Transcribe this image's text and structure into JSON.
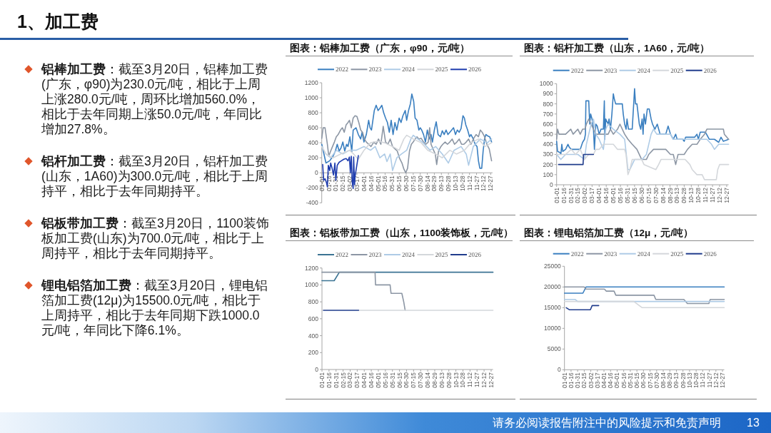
{
  "chart_data": [
    {
      "type": "other",
      "title": "1、加工费",
      "annotations": [
        "铝棒加工费：截至3月20日，铝棒加工费(广东，φ90)为230.0元/吨，相比于上周上涨280.0元/吨，周环比增加560.0%，相比于去年同期上涨50.0元/吨，年同比增加27.8%。",
        "铝杆加工费：截至3月20日，铝杆加工费(山东，1A60)为300.0元/吨，相比于上周持平，相比于去年同期持平。",
        "铝板带加工费：截至3月20日，1100装饰板加工费(山东)为700.0元/吨，相比于上周持平，相比于去年同期持平。",
        "锂电铝箔加工费：截至3月20日，锂电铝箔加工费(12μ)为15500.0元/吨，相比于上周持平，相比于去年同期下跌1000.0元/吨，年同比下降6.1%。",
        "请务必阅读报告附注中的风险提示和免责声明",
        "13"
      ]
    },
    {
      "type": "line",
      "title": "图表：铝棒加工费（广东，φ90，元/吨）",
      "legend": "top",
      "xlim": [
        "--01-01",
        "--12-31"
      ],
      "ylim": [
        -400,
        1200
      ],
      "yticks": [
        -400,
        -200,
        0,
        200,
        400,
        600,
        800,
        1000,
        1200
      ],
      "xticks": [
        {
          "value": "--01-01",
          "label": "01-01"
        },
        {
          "value": "--01-16",
          "label": "01-16"
        },
        {
          "value": "--01-31",
          "label": "01-31"
        },
        {
          "value": "--02-15",
          "label": "02-15"
        },
        {
          "value": "--03-02",
          "label": "03-02"
        },
        {
          "value": "--03-17",
          "label": "03-17"
        },
        {
          "value": "--04-01",
          "label": "04-01"
        },
        {
          "value": "--04-16",
          "label": "04-16"
        },
        {
          "value": "--05-01",
          "label": "05-01"
        },
        {
          "value": "--05-16",
          "label": "05-16"
        },
        {
          "value": "--05-31",
          "label": "05-31"
        },
        {
          "value": "--06-15",
          "label": "06-15"
        },
        {
          "value": "--06-30",
          "label": "06-30"
        },
        {
          "value": "--07-15",
          "label": "07-15"
        },
        {
          "value": "--07-30",
          "label": "07-30"
        },
        {
          "value": "--08-14",
          "label": "08-14"
        },
        {
          "value": "--08-29",
          "label": "08-29"
        },
        {
          "value": "--09-13",
          "label": "09-13"
        },
        {
          "value": "--09-28",
          "label": "09-28"
        },
        {
          "value": "--10-13",
          "label": "10-13"
        },
        {
          "value": "--10-28",
          "label": "10-28"
        },
        {
          "value": "--11-12",
          "label": "11-12"
        },
        {
          "value": "--11-27",
          "label": "11-27"
        },
        {
          "value": "--12-12",
          "label": "12-12"
        },
        {
          "value": "--12-27",
          "label": "12-27"
        }
      ],
      "series": [
        {
          "name": "2022",
          "color": "#3a7fc0",
          "x": [
            "--01-01",
            "--01-10",
            "--01-18",
            "--01-25",
            "--01-30",
            "--02-03",
            "--02-07",
            "--02-11",
            "--02-15",
            "--02-19",
            "--02-23",
            "--02-26",
            "--03-02",
            "--03-06",
            "--03-09",
            "--03-15",
            "--03-20",
            "--03-25",
            "--03-28",
            "--04-01",
            "--04-06",
            "--04-11",
            "--04-14",
            "--04-17",
            "--04-23",
            "--04-27",
            "--05-01",
            "--05-05",
            "--05-09",
            "--05-13",
            "--05-17",
            "--05-21",
            "--05-25",
            "--05-29",
            "--06-02",
            "--06-06",
            "--06-10",
            "--06-15",
            "--06-19",
            "--06-23",
            "--06-28",
            "--07-01",
            "--07-05",
            "--07-09",
            "--07-12",
            "--07-16",
            "--07-19",
            "--07-23",
            "--07-27",
            "--07-30",
            "--08-02",
            "--08-06",
            "--08-10",
            "--08-14",
            "--08-18",
            "--08-22",
            "--08-25",
            "--08-29",
            "--09-02",
            "--09-06",
            "--09-11",
            "--09-15",
            "--09-19",
            "--09-23",
            "--09-27",
            "--10-01",
            "--10-05",
            "--10-09",
            "--10-13",
            "--10-17",
            "--10-21",
            "--10-25",
            "--10-29",
            "--11-01",
            "--11-04",
            "--11-08",
            "--11-12",
            "--11-15",
            "--11-20",
            "--11-24",
            "--11-28",
            "--12-01",
            "--12-04",
            "--12-08",
            "--12-11",
            "--12-14",
            "--12-17",
            "--12-21",
            "--12-25",
            "--12-29"
          ],
          "values": [
            380,
            130,
            160,
            220,
            290,
            380,
            290,
            330,
            410,
            290,
            380,
            350,
            480,
            280,
            570,
            600,
            510,
            450,
            540,
            410,
            510,
            700,
            600,
            570,
            830,
            900,
            830,
            860,
            900,
            800,
            730,
            670,
            540,
            700,
            510,
            670,
            570,
            730,
            670,
            760,
            830,
            700,
            830,
            920,
            1050,
            950,
            730,
            700,
            570,
            600,
            570,
            510,
            410,
            570,
            450,
            510,
            410,
            570,
            680,
            510,
            480,
            560,
            510,
            570,
            510,
            540,
            570,
            600,
            510,
            570,
            540,
            590,
            760,
            730,
            640,
            570,
            480,
            510,
            450,
            380,
            350,
            160,
            60,
            60,
            290,
            450,
            510,
            490,
            480,
            410
          ]
        },
        {
          "name": "2023",
          "color": "#8c96a4",
          "x": [
            "--01-01",
            "--01-04",
            "--01-08",
            "--01-13",
            "--01-16",
            "--01-20",
            "--01-24",
            "--01-28",
            "--02-01",
            "--02-05",
            "--02-10",
            "--02-14",
            "--02-18",
            "--02-22",
            "--02-26",
            "--03-01",
            "--03-05",
            "--03-09",
            "--03-13",
            "--03-17",
            "--03-21",
            "--03-25",
            "--03-29",
            "--04-02",
            "--04-06",
            "--04-11",
            "--04-16",
            "--04-22",
            "--04-27",
            "--05-02",
            "--05-07",
            "--05-12",
            "--05-17",
            "--05-22",
            "--05-27",
            "--06-01",
            "--06-06",
            "--06-11",
            "--06-16",
            "--06-21",
            "--06-25",
            "--06-29",
            "--07-03",
            "--07-07",
            "--07-11",
            "--07-15",
            "--07-19",
            "--07-23",
            "--07-27",
            "--08-01",
            "--08-06",
            "--08-11",
            "--08-16",
            "--08-19",
            "--08-22",
            "--08-26",
            "--08-31",
            "--09-03",
            "--09-07",
            "--09-12",
            "--09-16",
            "--09-21",
            "--09-26",
            "--10-01",
            "--10-06",
            "--10-11",
            "--10-16",
            "--10-21",
            "--10-26",
            "--10-31",
            "--11-05",
            "--11-10",
            "--11-15",
            "--11-21",
            "--11-26",
            "--12-01",
            "--12-05",
            "--12-09",
            "--12-14",
            "--12-19",
            "--12-24",
            "--12-29"
          ],
          "values": [
            460,
            600,
            600,
            380,
            220,
            290,
            350,
            410,
            480,
            510,
            570,
            600,
            540,
            640,
            670,
            700,
            600,
            730,
            760,
            750,
            670,
            570,
            540,
            450,
            410,
            380,
            350,
            410,
            380,
            450,
            380,
            620,
            410,
            380,
            450,
            350,
            320,
            290,
            190,
            130,
            50,
            0,
            60,
            290,
            380,
            410,
            450,
            480,
            450,
            460,
            410,
            380,
            410,
            600,
            380,
            320,
            250,
            110,
            290,
            350,
            380,
            410,
            380,
            410,
            450,
            380,
            410,
            450,
            380,
            380,
            410,
            450,
            380,
            460,
            510,
            480,
            570,
            540,
            480,
            380,
            320,
            160
          ]
        },
        {
          "name": "2024",
          "color": "#aecbe6",
          "x": [
            "--01-01",
            "--01-10",
            "--01-20",
            "--02-01",
            "--02-15",
            "--03-01",
            "--03-15",
            "--04-01",
            "--04-15",
            "--04-25",
            "--05-05",
            "--05-15",
            "--05-20",
            "--05-27",
            "--06-01",
            "--06-10",
            "--06-20",
            "--07-01",
            "--07-10",
            "--07-15",
            "--07-25",
            "--08-05",
            "--08-20",
            "--09-01",
            "--09-15",
            "--09-28",
            "--10-10",
            "--10-25",
            "--11-05",
            "--11-10",
            "--11-20",
            "--12-05",
            "--12-20",
            "--12-29"
          ],
          "values": [
            350,
            250,
            200,
            300,
            250,
            300,
            300,
            350,
            300,
            350,
            200,
            250,
            150,
            250,
            30,
            200,
            250,
            300,
            450,
            500,
            450,
            400,
            300,
            350,
            250,
            130,
            300,
            350,
            250,
            100,
            350,
            450,
            400,
            450
          ]
        },
        {
          "name": "2025",
          "color": "#d4d7db",
          "x": [
            "--01-01",
            "--01-10",
            "--01-25",
            "--02-10",
            "--03-01",
            "--03-10",
            "--03-20",
            "--04-01",
            "--04-15",
            "--05-01",
            "--05-15",
            "--06-01",
            "--06-15",
            "--06-25",
            "--07-01",
            "--07-15",
            "--08-01",
            "--08-15",
            "--09-01",
            "--09-15",
            "--10-01",
            "--10-15",
            "--11-01",
            "--11-15",
            "--12-01",
            "--12-15",
            "--12-29"
          ],
          "values": [
            350,
            250,
            200,
            250,
            300,
            250,
            180,
            300,
            400,
            420,
            400,
            350,
            300,
            450,
            500,
            450,
            400,
            300,
            250,
            200,
            300,
            250,
            300,
            400,
            450,
            350,
            400
          ]
        },
        {
          "name": "2026",
          "color": "#1e3cae",
          "x": [
            "--01-03",
            "--01-05",
            "--01-08",
            "--01-11",
            "--01-13",
            "--01-15",
            "--01-18",
            "--01-20",
            "--01-23",
            "--01-26",
            "--01-29",
            "--01-31",
            "--02-03",
            "--02-07",
            "--02-12",
            "--02-17",
            "--02-22",
            "--02-26",
            "--03-01",
            "--03-03",
            "--03-05",
            "--03-07",
            "--03-09",
            "--03-10",
            "--03-12",
            "--03-13",
            "--03-20"
          ],
          "values": [
            110,
            -100,
            -80,
            -130,
            -190,
            100,
            30,
            130,
            60,
            -30,
            130,
            -100,
            100,
            140,
            160,
            180,
            190,
            160,
            210,
            0,
            220,
            -130,
            -210,
            210,
            -160,
            -50,
            230
          ]
        }
      ]
    },
    {
      "type": "line",
      "title": "图表：铝杆加工费（山东，1A60，元/吨）",
      "legend": "top",
      "xlim": [
        "--01-01",
        "--12-31"
      ],
      "ylim": [
        0,
        1000
      ],
      "yticks": [
        0,
        100,
        200,
        300,
        400,
        500,
        600,
        700,
        800,
        900,
        1000
      ],
      "xticks": [
        {
          "value": "--01-01",
          "label": "01-01"
        },
        {
          "value": "--01-16",
          "label": "01-16"
        },
        {
          "value": "--01-31",
          "label": "01-31"
        },
        {
          "value": "--02-15",
          "label": "02-15"
        },
        {
          "value": "--03-02",
          "label": "03-02"
        },
        {
          "value": "--03-17",
          "label": "03-17"
        },
        {
          "value": "--04-01",
          "label": "04-01"
        },
        {
          "value": "--04-16",
          "label": "04-16"
        },
        {
          "value": "--05-01",
          "label": "05-01"
        },
        {
          "value": "--05-16",
          "label": "05-16"
        },
        {
          "value": "--05-31",
          "label": "05-31"
        },
        {
          "value": "--06-15",
          "label": "06-15"
        },
        {
          "value": "--06-30",
          "label": "06-30"
        },
        {
          "value": "--07-15",
          "label": "07-15"
        },
        {
          "value": "--07-30",
          "label": "07-30"
        },
        {
          "value": "--08-14",
          "label": "08-14"
        },
        {
          "value": "--08-29",
          "label": "08-29"
        },
        {
          "value": "--09-13",
          "label": "09-13"
        },
        {
          "value": "--09-28",
          "label": "09-28"
        },
        {
          "value": "--10-13",
          "label": "10-13"
        },
        {
          "value": "--10-28",
          "label": "10-28"
        },
        {
          "value": "--11-12",
          "label": "11-12"
        },
        {
          "value": "--11-27",
          "label": "11-27"
        },
        {
          "value": "--12-12",
          "label": "12-12"
        },
        {
          "value": "--12-27",
          "label": "12-27"
        }
      ],
      "series": [
        {
          "name": "2022",
          "color": "#3a7fc0",
          "x": [
            "--01-01",
            "--01-03",
            "--01-08",
            "--01-10",
            "--01-12",
            "--01-14",
            "--01-20",
            "--01-25",
            "--01-28",
            "--02-01",
            "--02-20",
            "--02-25",
            "--03-01",
            "--03-03",
            "--03-04",
            "--03-10",
            "--03-12",
            "--03-14",
            "--03-17",
            "--03-20",
            "--03-22",
            "--03-25",
            "--03-28",
            "--04-01",
            "--04-05",
            "--04-10",
            "--04-12",
            "--04-13",
            "--04-15",
            "--04-20",
            "--04-22",
            "--04-25",
            "--04-28",
            "--05-01",
            "--05-03",
            "--05-06",
            "--05-20",
            "--05-22",
            "--05-25",
            "--05-28",
            "--05-30",
            "--06-02",
            "--06-10",
            "--06-15",
            "--06-17",
            "--06-20",
            "--06-25",
            "--06-28",
            "--07-01",
            "--07-03",
            "--07-05",
            "--07-08",
            "--07-12",
            "--07-16",
            "--07-20",
            "--07-23",
            "--07-28",
            "--08-02",
            "--08-05",
            "--08-08",
            "--08-20",
            "--08-25",
            "--08-30",
            "--09-05",
            "--09-10",
            "--09-13",
            "--09-25",
            "--09-28",
            "--10-01",
            "--10-20",
            "--10-25",
            "--10-28",
            "--11-01",
            "--11-12",
            "--11-20",
            "--12-01",
            "--12-10",
            "--12-15",
            "--12-20",
            "--12-31"
          ],
          "values": [
            430,
            330,
            320,
            300,
            400,
            330,
            350,
            400,
            370,
            350,
            350,
            420,
            450,
            500,
            830,
            830,
            600,
            700,
            650,
            550,
            350,
            600,
            580,
            500,
            550,
            550,
            830,
            450,
            650,
            600,
            650,
            550,
            700,
            900,
            850,
            800,
            800,
            700,
            600,
            550,
            650,
            550,
            550,
            950,
            800,
            800,
            600,
            550,
            650,
            500,
            700,
            600,
            750,
            750,
            650,
            600,
            550,
            600,
            550,
            500,
            500,
            580,
            500,
            450,
            500,
            450,
            450,
            430,
            470,
            470,
            500,
            450,
            520,
            520,
            450,
            450,
            420,
            470,
            430,
            450
          ]
        },
        {
          "name": "2023",
          "color": "#8c96a4",
          "x": [
            "--01-01",
            "--01-03",
            "--01-06",
            "--01-20",
            "--01-31",
            "--02-05",
            "--02-15",
            "--02-20",
            "--02-25",
            "--03-02",
            "--03-05",
            "--03-10",
            "--03-20",
            "--03-25",
            "--04-20",
            "--04-25",
            "--05-01",
            "--05-10",
            "--05-15",
            "--05-25",
            "--06-01",
            "--06-10",
            "--06-20",
            "--06-30",
            "--07-10",
            "--07-15",
            "--07-25",
            "--08-20",
            "--08-30",
            "--09-05",
            "--09-10",
            "--09-15",
            "--09-28",
            "--10-05",
            "--10-15",
            "--10-25",
            "--11-01",
            "--11-10",
            "--11-15",
            "--12-20",
            "--12-22",
            "--12-31"
          ],
          "values": [
            450,
            550,
            500,
            500,
            550,
            500,
            550,
            500,
            550,
            550,
            600,
            650,
            550,
            500,
            500,
            550,
            500,
            550,
            600,
            500,
            450,
            400,
            350,
            250,
            250,
            300,
            350,
            350,
            300,
            300,
            200,
            300,
            300,
            350,
            400,
            400,
            450,
            500,
            550,
            550,
            500,
            450
          ]
        },
        {
          "name": "2024",
          "color": "#aecbe6",
          "x": [
            "--01-01",
            "--01-10",
            "--01-20",
            "--02-15",
            "--03-01",
            "--03-05",
            "--03-10",
            "--03-15",
            "--03-20",
            "--03-25",
            "--04-01",
            "--04-10",
            "--04-15",
            "--04-20",
            "--05-01",
            "--05-15",
            "--05-25",
            "--06-01",
            "--06-05",
            "--06-15",
            "--07-01",
            "--07-10",
            "--07-15",
            "--07-20",
            "--07-25",
            "--08-01",
            "--08-30",
            "--09-05",
            "--09-25",
            "--10-20",
            "--11-05",
            "--11-15",
            "--11-25",
            "--12-01",
            "--12-10",
            "--12-31"
          ],
          "values": [
            300,
            250,
            300,
            300,
            250,
            400,
            500,
            600,
            650,
            500,
            450,
            350,
            550,
            600,
            550,
            500,
            450,
            150,
            150,
            250,
            250,
            300,
            400,
            500,
            550,
            500,
            500,
            450,
            450,
            450,
            450,
            450,
            400,
            350,
            400,
            400
          ]
        },
        {
          "name": "2025",
          "color": "#d4d7db",
          "x": [
            "--01-01",
            "--01-20",
            "--02-01",
            "--02-10",
            "--02-20",
            "--03-01",
            "--03-10",
            "--03-20",
            "--03-25",
            "--04-01",
            "--04-10",
            "--05-01",
            "--05-10",
            "--05-25",
            "--05-28",
            "--06-01",
            "--06-05",
            "--06-10",
            "--06-30",
            "--07-05",
            "--07-30",
            "--08-05",
            "--08-10",
            "--09-30",
            "--10-10",
            "--10-15",
            "--10-25",
            "--11-05",
            "--11-10",
            "--12-05",
            "--12-08",
            "--12-12",
            "--12-31"
          ],
          "values": [
            300,
            300,
            350,
            300,
            350,
            250,
            300,
            300,
            350,
            350,
            400,
            400,
            350,
            350,
            300,
            100,
            150,
            250,
            250,
            200,
            150,
            200,
            250,
            250,
            200,
            150,
            100,
            100,
            50,
            50,
            150,
            200,
            200
          ]
        },
        {
          "name": "2026",
          "color": "#203c8c",
          "x": [
            "--01-05",
            "--02-26",
            "--02-27",
            "--03-20"
          ],
          "values": [
            200,
            200,
            300,
            300
          ]
        }
      ]
    },
    {
      "type": "line",
      "title": "图表：铝板带加工费（山东，1100装饰板，元/吨）",
      "legend": "top",
      "xlim": [
        "--01-01",
        "--12-31"
      ],
      "ylim": [
        0,
        1200
      ],
      "yticks": [
        0,
        200,
        400,
        600,
        800,
        1000,
        1200
      ],
      "xticks": [
        {
          "value": "--01-01",
          "label": "01-01"
        },
        {
          "value": "--01-16",
          "label": "01-16"
        },
        {
          "value": "--01-31",
          "label": "01-31"
        },
        {
          "value": "--02-15",
          "label": "02-15"
        },
        {
          "value": "--03-02",
          "label": "03-02"
        },
        {
          "value": "--03-17",
          "label": "03-17"
        },
        {
          "value": "--04-01",
          "label": "04-01"
        },
        {
          "value": "--04-16",
          "label": "04-16"
        },
        {
          "value": "--05-01",
          "label": "05-01"
        },
        {
          "value": "--05-16",
          "label": "05-16"
        },
        {
          "value": "--05-31",
          "label": "05-31"
        },
        {
          "value": "--06-15",
          "label": "06-15"
        },
        {
          "value": "--06-30",
          "label": "06-30"
        },
        {
          "value": "--07-15",
          "label": "07-15"
        },
        {
          "value": "--07-30",
          "label": "07-30"
        },
        {
          "value": "--08-14",
          "label": "08-14"
        },
        {
          "value": "--08-29",
          "label": "08-29"
        },
        {
          "value": "--09-13",
          "label": "09-13"
        },
        {
          "value": "--09-28",
          "label": "09-28"
        },
        {
          "value": "--10-13",
          "label": "10-13"
        },
        {
          "value": "--10-28",
          "label": "10-28"
        },
        {
          "value": "--11-12",
          "label": "11-12"
        },
        {
          "value": "--11-27",
          "label": "11-27"
        },
        {
          "value": "--12-12",
          "label": "12-12"
        },
        {
          "value": "--12-27",
          "label": "12-27"
        }
      ],
      "series": [
        {
          "name": "2022",
          "color": "#3b7393",
          "x": [
            "--01-01",
            "--01-27",
            "--02-07",
            "--12-31"
          ],
          "values": [
            1050,
            1050,
            1150,
            1150
          ]
        },
        {
          "name": "2023",
          "color": "#8c96a4",
          "x": [
            "--01-01",
            "--04-24",
            "--04-25",
            "--05-26",
            "--05-28",
            "--06-20",
            "--06-24",
            "--06-27"
          ],
          "values": [
            1150,
            1150,
            1000,
            1000,
            900,
            900,
            800,
            700
          ]
        },
        {
          "name": "2024",
          "color": "#aecbe6"
        },
        {
          "name": "2025",
          "color": "#d4d7db",
          "x": [
            "--03-20",
            "--12-31"
          ],
          "values": [
            700,
            700
          ]
        },
        {
          "name": "2026",
          "color": "#203c8c",
          "x": [
            "--01-04",
            "--03-20"
          ],
          "values": [
            700,
            700
          ]
        }
      ]
    },
    {
      "type": "line",
      "title": "图表：锂电铝箔加工费（12μ，元/吨）",
      "legend": "top",
      "xlim": [
        "--01-01",
        "--12-31"
      ],
      "ylim": [
        0,
        25000
      ],
      "yticks": [
        0,
        5000,
        10000,
        15000,
        20000,
        25000
      ],
      "xticks": [
        {
          "value": "--01-01",
          "label": "01-01"
        },
        {
          "value": "--01-16",
          "label": "01-16"
        },
        {
          "value": "--01-31",
          "label": "01-31"
        },
        {
          "value": "--02-15",
          "label": "02-15"
        },
        {
          "value": "--03-02",
          "label": "03-02"
        },
        {
          "value": "--03-17",
          "label": "03-17"
        },
        {
          "value": "--04-01",
          "label": "04-01"
        },
        {
          "value": "--04-16",
          "label": "04-16"
        },
        {
          "value": "--05-01",
          "label": "05-01"
        },
        {
          "value": "--05-16",
          "label": "05-16"
        },
        {
          "value": "--05-31",
          "label": "05-31"
        },
        {
          "value": "--06-15",
          "label": "06-15"
        },
        {
          "value": "--06-30",
          "label": "06-30"
        },
        {
          "value": "--07-15",
          "label": "07-15"
        },
        {
          "value": "--07-30",
          "label": "07-30"
        },
        {
          "value": "--08-14",
          "label": "08-14"
        },
        {
          "value": "--08-29",
          "label": "08-29"
        },
        {
          "value": "--09-13",
          "label": "09-13"
        },
        {
          "value": "--09-28",
          "label": "09-28"
        },
        {
          "value": "--10-13",
          "label": "10-13"
        },
        {
          "value": "--10-28",
          "label": "10-28"
        },
        {
          "value": "--11-12",
          "label": "11-12"
        },
        {
          "value": "--11-27",
          "label": "11-27"
        },
        {
          "value": "--12-12",
          "label": "12-12"
        },
        {
          "value": "--12-27",
          "label": "12-27"
        }
      ],
      "series": [
        {
          "name": "2022",
          "color": "#3a7fc0",
          "x": [
            "--01-01",
            "--02-12",
            "--02-19",
            "--12-31"
          ],
          "values": [
            18500,
            18500,
            20000,
            20000
          ]
        },
        {
          "name": "2023",
          "color": "#8c96a4",
          "x": [
            "--01-01",
            "--02-15",
            "--02-19",
            "--04-02",
            "--04-06",
            "--04-24",
            "--04-28",
            "--07-24",
            "--07-28",
            "--09-30",
            "--10-08",
            "--11-26",
            "--11-29",
            "--12-31"
          ],
          "values": [
            20000,
            20000,
            19500,
            19500,
            19000,
            19000,
            18000,
            18000,
            17000,
            17000,
            16000,
            16000,
            17000,
            17000
          ]
        },
        {
          "name": "2024",
          "color": "#aecbe6",
          "x": [
            "--01-01",
            "--01-25",
            "--01-31",
            "--12-31"
          ],
          "values": [
            17000,
            17000,
            16500,
            16500
          ]
        },
        {
          "name": "2025",
          "color": "#d4d7db",
          "x": [
            "--01-01",
            "--06-08",
            "--06-27",
            "--12-31"
          ],
          "values": [
            16500,
            16500,
            15000,
            15000
          ]
        },
        {
          "name": "2026",
          "color": "#203c8c",
          "x": [
            "--01-05",
            "--01-12",
            "--03-01",
            "--03-05",
            "--03-20"
          ],
          "values": [
            15000,
            14500,
            14500,
            15500,
            15500
          ]
        }
      ]
    }
  ]
}
